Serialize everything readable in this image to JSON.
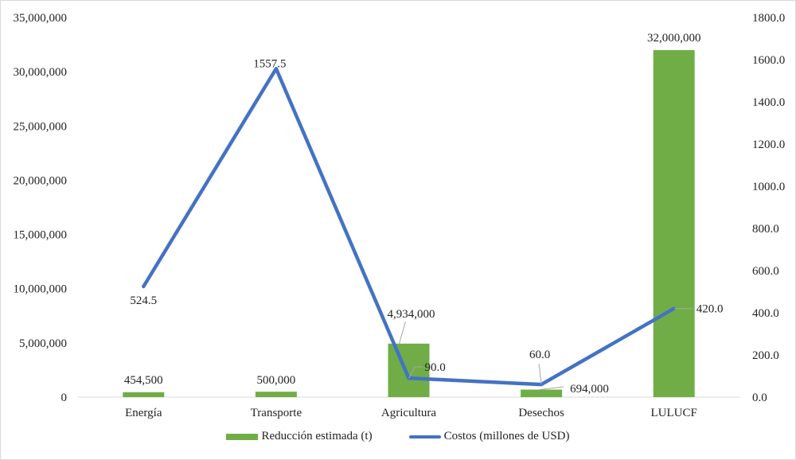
{
  "chart_data": {
    "type": "bar+line",
    "title": "",
    "categories": [
      "Energía",
      "Transporte",
      "Agricultura",
      "Desechos",
      "LULUCF"
    ],
    "series": [
      {
        "name": "Reducción estimada (t)",
        "type": "bar",
        "axis": "left",
        "color": "#70ad47",
        "values": [
          454500,
          500000,
          4934000,
          694000,
          32000000
        ],
        "labels": [
          "454,500",
          "500,000",
          "4,934,000",
          "694,000",
          "32,000,000"
        ]
      },
      {
        "name": "Costos (millones de USD)",
        "type": "line",
        "axis": "right",
        "color": "#4472c4",
        "values": [
          524.5,
          1557.5,
          90.0,
          60.0,
          420.0
        ],
        "labels": [
          "524.5",
          "1557.5",
          "90.0",
          "60.0",
          "420.0"
        ]
      }
    ],
    "left_axis": {
      "ylim": [
        0,
        35000000
      ],
      "ticks": [
        "0",
        "5,000,000",
        "10,000,000",
        "15,000,000",
        "20,000,000",
        "25,000,000",
        "30,000,000",
        "35,000,000"
      ]
    },
    "right_axis": {
      "ylim": [
        0,
        1800
      ],
      "ticks": [
        "0.0",
        "200.0",
        "400.0",
        "600.0",
        "800.0",
        "1000.0",
        "1200.0",
        "1400.0",
        "1600.0",
        "1800.0"
      ]
    },
    "grid": false,
    "legend_position": "bottom"
  },
  "legend": {
    "bar_label": "Reducción estimada (t)",
    "line_label": "Costos (millones de USD)"
  }
}
